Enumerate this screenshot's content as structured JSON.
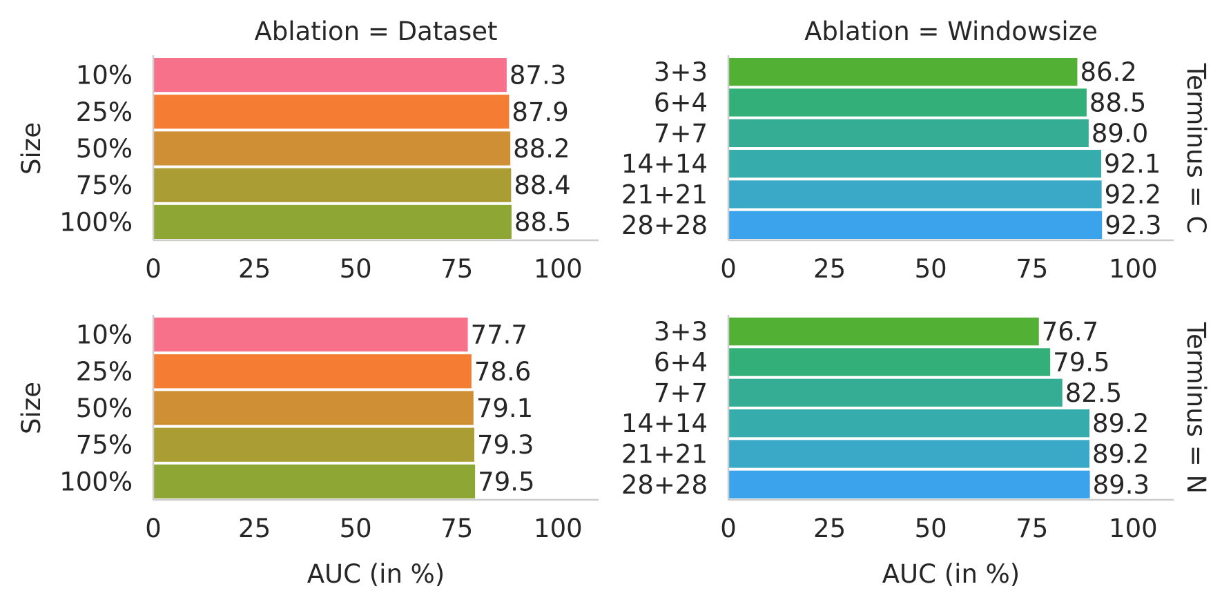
{
  "chart_data": {
    "type": "bar",
    "orientation": "horizontal",
    "xlabel": "AUC (in %)",
    "xlim": [
      0,
      110
    ],
    "xticks": [
      0,
      25,
      50,
      75,
      100
    ],
    "grid": false,
    "columns": [
      {
        "title": "Ablation = Dataset",
        "ylabel": "Size",
        "categories": [
          "10%",
          "25%",
          "50%",
          "75%",
          "100%"
        ],
        "colors": [
          "#f7718a",
          "#f47d33",
          "#cf8f35",
          "#aa9d34",
          "#8ea734"
        ]
      },
      {
        "title": "Ablation = Windowsize",
        "ylabel": "",
        "categories": [
          "3+3",
          "6+4",
          "7+7",
          "14+14",
          "21+21",
          "28+28"
        ],
        "colors": [
          "#52b034",
          "#33b07a",
          "#35ac94",
          "#37acac",
          "#3aa9c7",
          "#3ba3ec"
        ]
      }
    ],
    "rows": [
      {
        "title": "Terminus = C"
      },
      {
        "title": "Terminus = N"
      }
    ],
    "panels": [
      {
        "row": 0,
        "col": 0,
        "categories": [
          "10%",
          "25%",
          "50%",
          "75%",
          "100%"
        ],
        "values": [
          87.3,
          87.9,
          88.2,
          88.4,
          88.5
        ],
        "labels": [
          "87.3",
          "87.9",
          "88.2",
          "88.4",
          "88.5"
        ]
      },
      {
        "row": 0,
        "col": 1,
        "categories": [
          "3+3",
          "6+4",
          "7+7",
          "14+14",
          "21+21",
          "28+28"
        ],
        "values": [
          86.2,
          88.5,
          89.0,
          92.1,
          92.2,
          92.3
        ],
        "labels": [
          "86.2",
          "88.5",
          "89.0",
          "92.1",
          "92.2",
          "92.3"
        ]
      },
      {
        "row": 1,
        "col": 0,
        "categories": [
          "10%",
          "25%",
          "50%",
          "75%",
          "100%"
        ],
        "values": [
          77.7,
          78.6,
          79.1,
          79.3,
          79.5
        ],
        "labels": [
          "77.7",
          "78.6",
          "79.1",
          "79.3",
          "79.5"
        ]
      },
      {
        "row": 1,
        "col": 1,
        "categories": [
          "3+3",
          "6+4",
          "7+7",
          "14+14",
          "21+21",
          "28+28"
        ],
        "values": [
          76.7,
          79.5,
          82.5,
          89.2,
          89.2,
          89.3
        ],
        "labels": [
          "76.7",
          "79.5",
          "82.5",
          "89.2",
          "89.2",
          "89.3"
        ]
      }
    ]
  }
}
